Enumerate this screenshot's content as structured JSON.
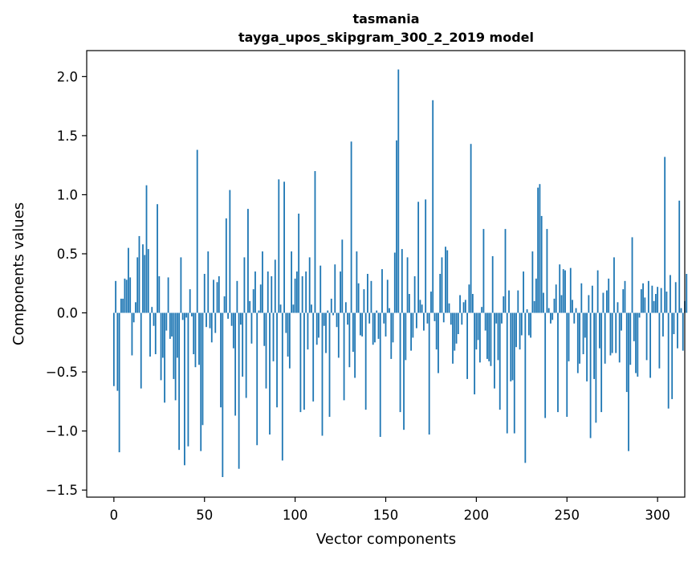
{
  "chart_data": {
    "type": "bar",
    "title": "tasmania",
    "subtitle": "tayga_upos_skipgram_300_2_2019 model",
    "xlabel": "Vector components",
    "ylabel": "Components values",
    "xlim": [
      -15,
      315
    ],
    "ylim": [
      -1.56,
      2.22
    ],
    "xticks": [
      0,
      50,
      100,
      150,
      200,
      250,
      300
    ],
    "xtick_labels": [
      "0",
      "50",
      "100",
      "150",
      "200",
      "250",
      "300"
    ],
    "yticks": [
      -1.5,
      -1.0,
      -0.5,
      0.0,
      0.5,
      1.0,
      1.5,
      2.0
    ],
    "ytick_labels": [
      "−1.5",
      "−1.0",
      "−0.5",
      "0.0",
      "0.5",
      "1.0",
      "1.5",
      "2.0"
    ],
    "grid": false,
    "bar_color": "#1f77b4",
    "values": [
      -0.62,
      0.27,
      -0.66,
      -1.18,
      0.12,
      0.12,
      0.29,
      0.28,
      0.55,
      0.3,
      -0.36,
      -0.08,
      0.09,
      0.47,
      0.65,
      -0.64,
      0.58,
      0.49,
      1.08,
      0.54,
      -0.37,
      0.05,
      -0.11,
      -0.35,
      0.92,
      0.31,
      -0.57,
      -0.38,
      -0.76,
      -0.15,
      0.3,
      -0.22,
      -0.2,
      -0.56,
      -0.74,
      -0.38,
      -1.16,
      0.47,
      -0.06,
      -1.29,
      -0.04,
      -1.13,
      0.2,
      -0.03,
      -0.35,
      -0.46,
      1.38,
      -0.44,
      -1.17,
      -0.95,
      0.33,
      -0.12,
      0.52,
      -0.13,
      -0.25,
      0.28,
      -0.17,
      0.26,
      0.31,
      -0.8,
      -1.39,
      0.14,
      0.8,
      -0.05,
      1.04,
      -0.11,
      -0.3,
      -0.87,
      0.27,
      -1.32,
      -0.1,
      -0.54,
      0.47,
      -0.72,
      0.88,
      0.1,
      -0.26,
      0.2,
      0.35,
      -1.12,
      0.02,
      0.24,
      0.52,
      -0.28,
      -0.64,
      0.35,
      -1.03,
      0.31,
      -0.41,
      0.45,
      -0.8,
      1.13,
      0.07,
      -1.25,
      1.11,
      -0.17,
      -0.37,
      -0.47,
      0.52,
      0.07,
      0.29,
      0.35,
      0.84,
      -0.84,
      0.31,
      -0.82,
      0.35,
      -0.31,
      0.47,
      0.07,
      -0.75,
      1.2,
      -0.27,
      -0.21,
      0.4,
      -1.04,
      -0.11,
      -0.34,
      0.02,
      -0.88,
      0.12,
      -0.02,
      0.41,
      -0.12,
      -0.38,
      0.35,
      0.62,
      -0.74,
      0.09,
      -0.1,
      -0.46,
      1.45,
      -0.33,
      -0.55,
      0.52,
      0.25,
      -0.19,
      -0.2,
      0.2,
      -0.82,
      0.33,
      -0.09,
      0.27,
      -0.27,
      -0.25,
      0.02,
      -0.22,
      -1.05,
      0.37,
      -0.09,
      -0.2,
      0.28,
      0.04,
      -0.39,
      -0.25,
      0.51,
      1.46,
      2.06,
      -0.84,
      0.54,
      -0.99,
      -0.4,
      0.47,
      0.16,
      -0.32,
      -0.21,
      0.31,
      -0.13,
      0.94,
      0.11,
      0.07,
      -0.15,
      0.96,
      -0.09,
      -1.03,
      0.18,
      1.8,
      -0.07,
      -0.31,
      -0.51,
      0.33,
      0.47,
      -0.08,
      0.56,
      0.53,
      0.08,
      -0.1,
      -0.43,
      -0.32,
      -0.26,
      -0.18,
      0.15,
      -0.1,
      0.09,
      0.11,
      -0.56,
      0.24,
      1.43,
      0.16,
      -0.69,
      -0.31,
      -0.23,
      -0.42,
      0.05,
      0.71,
      -0.15,
      -0.39,
      -0.41,
      -0.45,
      0.48,
      -0.64,
      -0.09,
      -0.4,
      -0.82,
      -0.09,
      0.14,
      0.71,
      -1.02,
      0.19,
      -0.58,
      -0.57,
      -1.02,
      -0.29,
      0.19,
      -0.31,
      -0.19,
      0.35,
      -1.27,
      0.03,
      -0.19,
      -0.21,
      0.52,
      0.1,
      0.29,
      1.06,
      1.09,
      0.82,
      0.17,
      -0.89,
      0.71,
      0.04,
      -0.09,
      -0.06,
      0.12,
      0.24,
      -0.84,
      0.41,
      0.15,
      0.37,
      0.36,
      -0.88,
      -0.41,
      0.38,
      0.11,
      -0.09,
      0.04,
      -0.51,
      -0.43,
      0.25,
      -0.35,
      -0.21,
      -0.58,
      0.15,
      -1.06,
      0.23,
      -0.56,
      -0.93,
      0.36,
      -0.3,
      -0.84,
      0.17,
      -0.43,
      0.19,
      0.29,
      -0.36,
      -0.34,
      0.47,
      -0.34,
      0.09,
      -0.42,
      -0.15,
      0.2,
      0.27,
      -0.67,
      -1.17,
      -0.44,
      0.64,
      -0.24,
      -0.51,
      -0.54,
      -0.04,
      0.2,
      0.25,
      0.13,
      -0.4,
      0.27,
      -0.55,
      0.23,
      0.1,
      0.16,
      0.22,
      -0.47,
      0.21,
      -0.2,
      1.32,
      0.18,
      -0.81,
      0.32,
      -0.73,
      -0.18,
      0.26,
      -0.3,
      0.95,
      0.04,
      -0.32,
      0.1,
      0.33
    ]
  }
}
